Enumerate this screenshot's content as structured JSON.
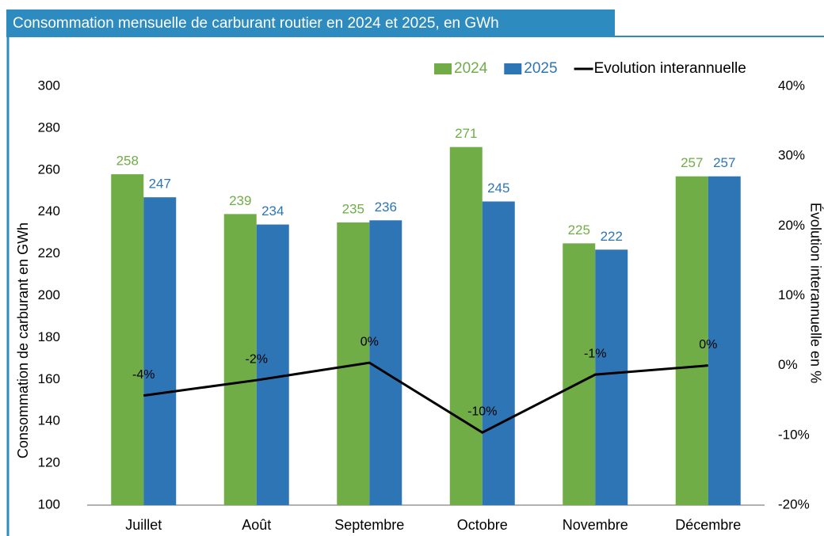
{
  "chart_data": {
    "type": "bar",
    "title": "Consommation mensuelle de carburant routier en 2024 et 2025, en GWh",
    "ylabel": "Consommation de carburant en GWh",
    "y2label": "Évolution interannuelle en %",
    "categories": [
      "Juillet",
      "Août",
      "Septembre",
      "Octobre",
      "Novembre",
      "Décembre"
    ],
    "series": [
      {
        "name": "2024",
        "type": "bar",
        "color": "#70ad47",
        "values": [
          258,
          239,
          235,
          271,
          225,
          257
        ]
      },
      {
        "name": "2025",
        "type": "bar",
        "color": "#2e75b6",
        "values": [
          247,
          234,
          236,
          245,
          222,
          257
        ]
      },
      {
        "name": "Evolution interannuelle",
        "type": "line",
        "axis": "y2",
        "color": "#000000",
        "values": [
          -4.3,
          -2.1,
          0.4,
          -9.6,
          -1.3,
          0.0
        ],
        "value_labels": [
          "-4%",
          "-2%",
          "0%",
          "-10%",
          "-1%",
          "0%"
        ]
      }
    ],
    "ylim": [
      100,
      300
    ],
    "yticks": [
      100,
      120,
      140,
      160,
      180,
      200,
      220,
      240,
      260,
      280,
      300
    ],
    "y2lim": [
      -20,
      40
    ],
    "y2ticks": [
      {
        "value": -20,
        "label": "-20%"
      },
      {
        "value": -10,
        "label": "-10%"
      },
      {
        "value": 0,
        "label": "0%"
      },
      {
        "value": 10,
        "label": "10%"
      },
      {
        "value": 20,
        "label": "20%"
      },
      {
        "value": 30,
        "label": "30%"
      },
      {
        "value": 40,
        "label": "40%"
      }
    ],
    "legend": "top-right",
    "grid": false
  }
}
